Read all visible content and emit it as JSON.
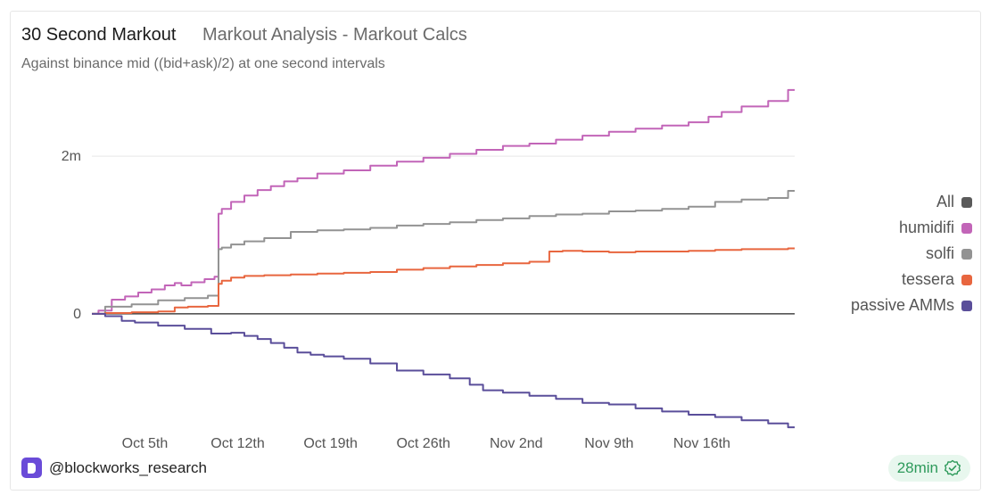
{
  "header": {
    "title": "30 Second Markout",
    "subtitle": "Markout Analysis - Markout Calcs",
    "description": "Against binance mid ((bid+ask)/2) at one second intervals"
  },
  "footer": {
    "handle": "@blockworks_research",
    "badge": "28min"
  },
  "colors": {
    "all": "#5a5a5a",
    "humidifi": "#c265b8",
    "solfi": "#939393",
    "tessera": "#e8663f",
    "passive": "#5a4e9a",
    "badge_bg": "#e8f7ee",
    "badge_fg": "#2e9a5b"
  },
  "chart_data": {
    "type": "line",
    "title": "30 Second Markout",
    "x_tick_labels": [
      "Oct 5th",
      "Oct 12th",
      "Oct 19th",
      "Oct 26th",
      "Nov 2nd",
      "Nov 9th",
      "Nov 16th"
    ],
    "y_tick_labels": [
      "0",
      "2m"
    ],
    "y_ticks": [
      0,
      2000000
    ],
    "xlim": [
      0,
      53
    ],
    "ylim": [
      -1450000,
      2850000
    ],
    "grid": "horizontal",
    "legend_position": "right",
    "legend": [
      "All",
      "humidifi",
      "solfi",
      "tessera",
      "passive AMMs"
    ],
    "x_tick_positions": [
      4,
      11,
      18,
      25,
      32,
      39,
      46
    ],
    "series": [
      {
        "name": "humidifi",
        "x": [
          0,
          1,
          2,
          3,
          4,
          5,
          6,
          6.5,
          7,
          8,
          9,
          9.5,
          9.6,
          10,
          11,
          12,
          13,
          14,
          15,
          16,
          18,
          20,
          22,
          24,
          26,
          28,
          30,
          32,
          34,
          36,
          38,
          40,
          42,
          44,
          46,
          47,
          48,
          50,
          52,
          53
        ],
        "y": [
          0,
          40000,
          180000,
          220000,
          270000,
          310000,
          360000,
          390000,
          360000,
          400000,
          440000,
          470000,
          1270000,
          1330000,
          1420000,
          1500000,
          1570000,
          1620000,
          1680000,
          1720000,
          1780000,
          1820000,
          1880000,
          1930000,
          1980000,
          2030000,
          2080000,
          2130000,
          2160000,
          2210000,
          2260000,
          2310000,
          2350000,
          2390000,
          2430000,
          2500000,
          2560000,
          2630000,
          2700000,
          2840000
        ]
      },
      {
        "name": "solfi",
        "x": [
          0,
          2,
          4,
          6,
          8,
          9.5,
          9.6,
          10,
          11,
          12,
          14,
          16,
          18,
          20,
          22,
          24,
          26,
          28,
          30,
          32,
          34,
          36,
          38,
          40,
          42,
          44,
          46,
          48,
          50,
          52,
          53
        ],
        "y": [
          0,
          90000,
          120000,
          170000,
          200000,
          230000,
          820000,
          840000,
          880000,
          920000,
          960000,
          1040000,
          1060000,
          1070000,
          1090000,
          1120000,
          1140000,
          1160000,
          1190000,
          1210000,
          1240000,
          1260000,
          1270000,
          1300000,
          1310000,
          1330000,
          1360000,
          1420000,
          1450000,
          1470000,
          1560000
        ]
      },
      {
        "name": "tessera",
        "x": [
          0,
          2,
          4,
          6,
          6.5,
          8,
          9.5,
          9.6,
          10,
          11,
          12,
          14,
          16,
          18,
          20,
          22,
          24,
          26,
          28,
          30,
          32,
          34,
          35,
          36,
          38,
          40,
          42,
          44,
          46,
          48,
          50,
          52,
          53
        ],
        "y": [
          0,
          10000,
          20000,
          30000,
          80000,
          90000,
          100000,
          380000,
          420000,
          460000,
          480000,
          490000,
          500000,
          510000,
          520000,
          530000,
          560000,
          580000,
          600000,
          620000,
          640000,
          660000,
          790000,
          800000,
          790000,
          780000,
          790000,
          790000,
          800000,
          810000,
          820000,
          820000,
          830000
        ]
      },
      {
        "name": "passive AMMs",
        "x": [
          0,
          2,
          2.5,
          4,
          6,
          8,
          10,
          11,
          12,
          13,
          14,
          15,
          16,
          17,
          18,
          20,
          22,
          24,
          26,
          28,
          29,
          30,
          32,
          34,
          36,
          38,
          40,
          42,
          44,
          46,
          48,
          50,
          52,
          53
        ],
        "y": [
          0,
          -30000,
          -90000,
          -110000,
          -150000,
          -190000,
          -250000,
          -240000,
          -280000,
          -320000,
          -370000,
          -430000,
          -490000,
          -520000,
          -540000,
          -570000,
          -630000,
          -720000,
          -770000,
          -820000,
          -900000,
          -970000,
          -1000000,
          -1040000,
          -1080000,
          -1130000,
          -1150000,
          -1200000,
          -1240000,
          -1280000,
          -1310000,
          -1350000,
          -1390000,
          -1440000
        ]
      }
    ]
  }
}
